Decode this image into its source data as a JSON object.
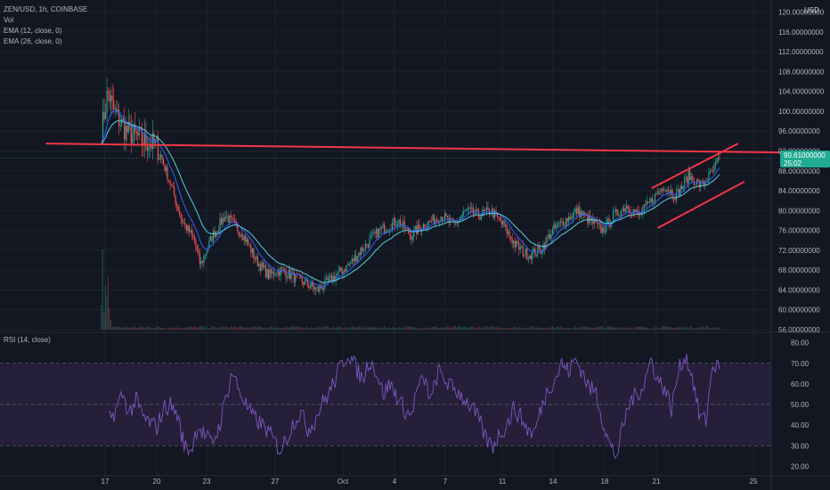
{
  "legend": {
    "symbol_line": "ZEN/USD, 1h, COINBASE",
    "vol": "Vol",
    "ema12": "EMA (12, close, 0)",
    "ema26": "EMA (26, close, 0)",
    "rsi": "RSI (14, close)"
  },
  "currency": "USD",
  "price_badge": {
    "price": "90.61000000",
    "countdown": "25:02"
  },
  "colors": {
    "background": "#131722",
    "candle_up": "#26a69a",
    "candle_down": "#ef5350",
    "ema12": "#2962ff",
    "ema26": "#4dd0e1",
    "trendline": "#f23645",
    "rsi_line": "#7e57c2",
    "rsi_band": "#2a2240",
    "badge": "#22ab94"
  },
  "chart_data": [
    {
      "type": "candlestick",
      "title": "ZEN/USD, 1h, COINBASE",
      "x_ticks": [
        "17",
        "20",
        "23",
        "27",
        "Oct",
        "4",
        "7",
        "11",
        "14",
        "18",
        "21",
        "25"
      ],
      "y_ticks": [
        "56.00000000",
        "60.00000000",
        "64.00000000",
        "68.00000000",
        "72.00000000",
        "76.00000000",
        "80.00000000",
        "84.00000000",
        "88.00000000",
        "92.00000000",
        "96.00000000",
        "100.00000000",
        "104.00000000",
        "108.00000000",
        "112.00000000",
        "116.00000000",
        "120.00000000"
      ],
      "ylim": [
        56,
        121
      ],
      "last_price": 90.61,
      "price_path": [
        {
          "x": 0,
          "y": 96
        },
        {
          "x": 0.01,
          "y": 104
        },
        {
          "x": 0.02,
          "y": 100
        },
        {
          "x": 0.04,
          "y": 96
        },
        {
          "x": 0.07,
          "y": 94
        },
        {
          "x": 0.09,
          "y": 93
        },
        {
          "x": 0.11,
          "y": 86
        },
        {
          "x": 0.13,
          "y": 78
        },
        {
          "x": 0.15,
          "y": 74
        },
        {
          "x": 0.16,
          "y": 69
        },
        {
          "x": 0.18,
          "y": 75
        },
        {
          "x": 0.2,
          "y": 79
        },
        {
          "x": 0.23,
          "y": 75
        },
        {
          "x": 0.25,
          "y": 70
        },
        {
          "x": 0.27,
          "y": 67
        },
        {
          "x": 0.29,
          "y": 68
        },
        {
          "x": 0.32,
          "y": 66
        },
        {
          "x": 0.35,
          "y": 64
        },
        {
          "x": 0.37,
          "y": 66
        },
        {
          "x": 0.4,
          "y": 69
        },
        {
          "x": 0.42,
          "y": 72
        },
        {
          "x": 0.45,
          "y": 76
        },
        {
          "x": 0.48,
          "y": 78
        },
        {
          "x": 0.5,
          "y": 75
        },
        {
          "x": 0.52,
          "y": 77
        },
        {
          "x": 0.55,
          "y": 79
        },
        {
          "x": 0.57,
          "y": 77
        },
        {
          "x": 0.59,
          "y": 80
        },
        {
          "x": 0.61,
          "y": 79
        },
        {
          "x": 0.63,
          "y": 80
        },
        {
          "x": 0.65,
          "y": 77
        },
        {
          "x": 0.67,
          "y": 73
        },
        {
          "x": 0.69,
          "y": 71
        },
        {
          "x": 0.71,
          "y": 72
        },
        {
          "x": 0.73,
          "y": 76
        },
        {
          "x": 0.75,
          "y": 78
        },
        {
          "x": 0.77,
          "y": 80
        },
        {
          "x": 0.79,
          "y": 78
        },
        {
          "x": 0.81,
          "y": 76
        },
        {
          "x": 0.83,
          "y": 79
        },
        {
          "x": 0.85,
          "y": 81
        },
        {
          "x": 0.87,
          "y": 79
        },
        {
          "x": 0.89,
          "y": 82
        },
        {
          "x": 0.91,
          "y": 85
        },
        {
          "x": 0.93,
          "y": 83
        },
        {
          "x": 0.95,
          "y": 87
        },
        {
          "x": 0.97,
          "y": 85
        },
        {
          "x": 0.99,
          "y": 88
        },
        {
          "x": 1,
          "y": 90.61
        }
      ],
      "annotations": [
        {
          "type": "horizontal-resistance",
          "from": [
            -0.09,
            93.5
          ],
          "to": [
            1.1,
            91.7
          ]
        },
        {
          "type": "channel-upper",
          "from": [
            0.89,
            84.5
          ],
          "to": [
            1.03,
            93.5
          ]
        },
        {
          "type": "channel-lower",
          "from": [
            0.9,
            76.5
          ],
          "to": [
            1.04,
            85.8
          ]
        }
      ]
    },
    {
      "type": "line",
      "title": "RSI (14, close)",
      "y_ticks": [
        "20.00",
        "30.00",
        "40.00",
        "50.00",
        "60.00",
        "70.00",
        "80.00"
      ],
      "ylim": [
        18,
        82
      ],
      "bands": [
        30,
        70
      ],
      "midline": 50,
      "series": [
        {
          "values": [
            42,
            47,
            55,
            46,
            52,
            44,
            41,
            39,
            48,
            50,
            45,
            30,
            28,
            40,
            35,
            31,
            38,
            52,
            66,
            57,
            50,
            44,
            41,
            38,
            33,
            28,
            34,
            42,
            46,
            38,
            42,
            50,
            55,
            62,
            70,
            75,
            68,
            62,
            72,
            66,
            55,
            60,
            54,
            48,
            44,
            58,
            62,
            52,
            66,
            62,
            58,
            56,
            52,
            48,
            42,
            33,
            30,
            36,
            40,
            48,
            44,
            38,
            36,
            48,
            58,
            62,
            70,
            66,
            72,
            66,
            58,
            56,
            42,
            30,
            25,
            40,
            52,
            55,
            60,
            72,
            62,
            58,
            48,
            66,
            74,
            64,
            45,
            42,
            70,
            67
          ]
        }
      ]
    }
  ]
}
